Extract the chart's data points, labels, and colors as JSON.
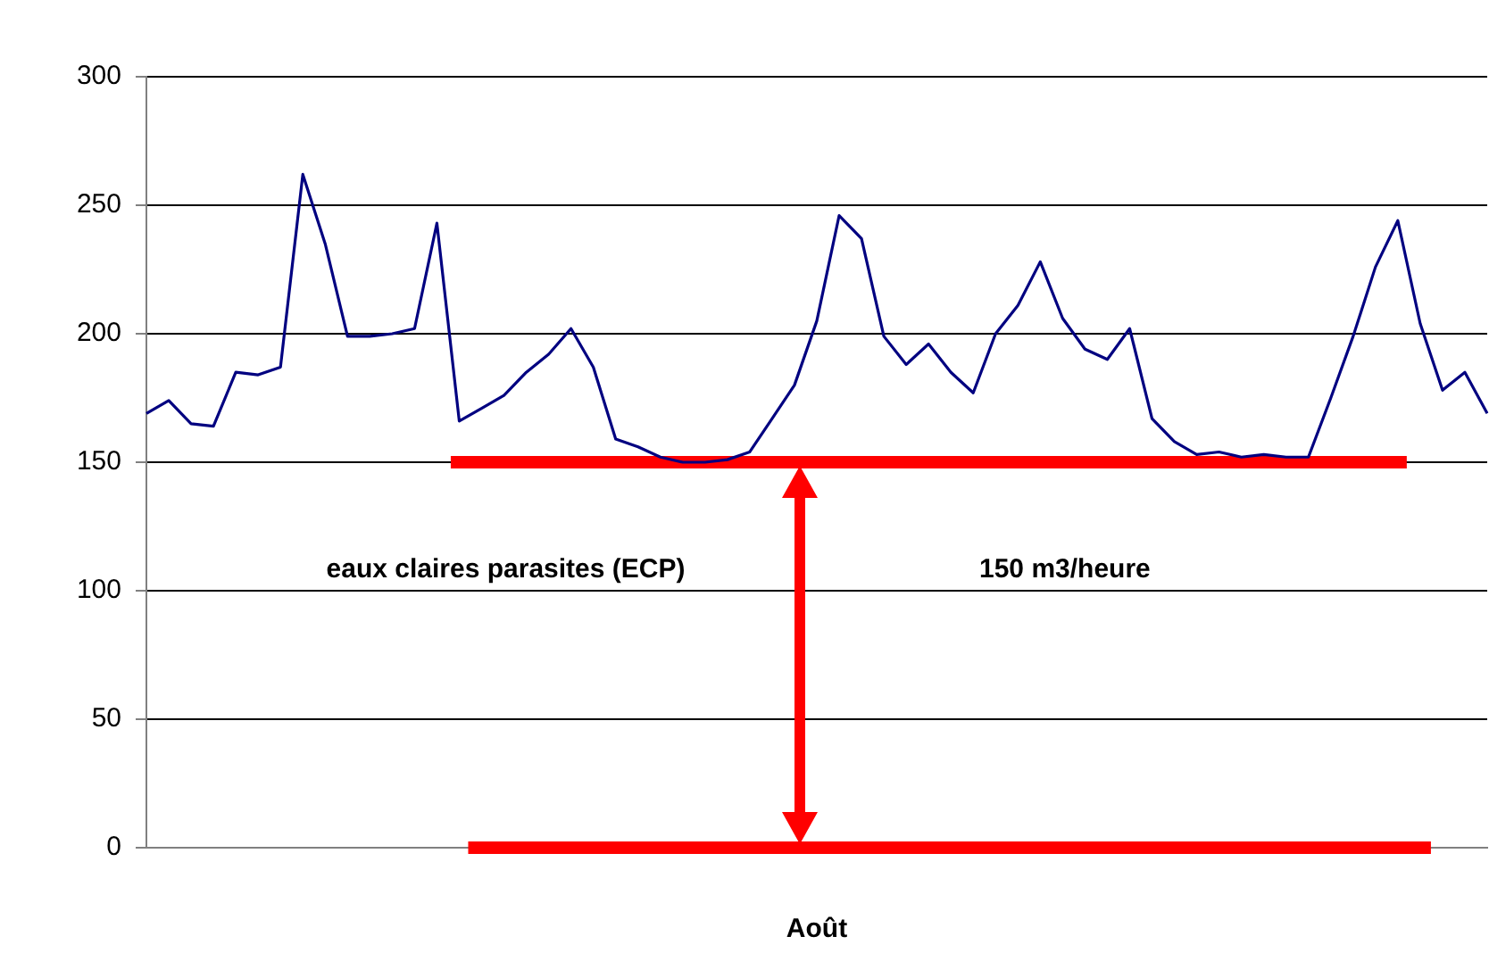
{
  "chart_data": {
    "type": "line",
    "xlabel": "Août",
    "categories": [
      null,
      null,
      null,
      null,
      null,
      null,
      null,
      null,
      null,
      null,
      null,
      null,
      null,
      null,
      null,
      null,
      null,
      null,
      null,
      null,
      null,
      null,
      null,
      null,
      null,
      null,
      null,
      null,
      null,
      null,
      null,
      null,
      null,
      null,
      null,
      null,
      null,
      null,
      null,
      null,
      null,
      null,
      null,
      null,
      null,
      null,
      null,
      null,
      null,
      null,
      null,
      null,
      null,
      null,
      null,
      null,
      null,
      null,
      null,
      null,
      null
    ],
    "series": [
      {
        "color": "#000080",
        "values": [
          169,
          174,
          165,
          164,
          185,
          184,
          187,
          262,
          235,
          199,
          199,
          200,
          202,
          243,
          166,
          171,
          176,
          185,
          192,
          202,
          187,
          159,
          156,
          152,
          150,
          150,
          151,
          154,
          167,
          180,
          205,
          246,
          237,
          199,
          188,
          196,
          185,
          177,
          200,
          211,
          228,
          206,
          194,
          190,
          202,
          167,
          158,
          153,
          154,
          152,
          153,
          152,
          152,
          175,
          199,
          226,
          244,
          204,
          178,
          185,
          169
        ]
      }
    ],
    "ylim": [
      0,
      300
    ],
    "yticks": [
      0,
      50,
      100,
      150,
      200,
      250,
      300
    ],
    "grid": "y",
    "tick_labels": "y",
    "legend": false,
    "marker": "none",
    "line_style": "solid",
    "ref_lines": [
      {
        "axis": "y",
        "value": 150,
        "color": "#ff0000"
      },
      {
        "axis": "y",
        "value": 0,
        "color": "#ff0000"
      }
    ],
    "annotations": [
      "eaux claires parasites (ECP)",
      "150 m3/heure"
    ]
  }
}
